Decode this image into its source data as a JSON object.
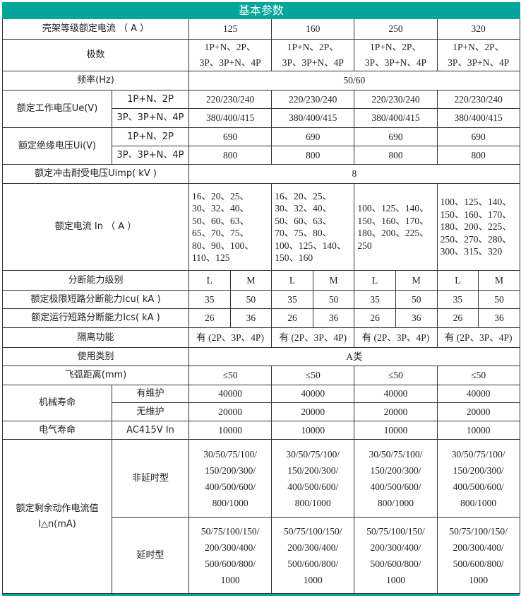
{
  "title": "基本参数",
  "accent_color": "#00a69a",
  "rows": [
    {
      "kind": "full",
      "label": "壳架等级额定电流 （ A ）",
      "values": [
        "125",
        "160",
        "250",
        "320"
      ]
    },
    {
      "kind": "full",
      "label": "极数",
      "values": [
        "1P+N、2P、\n3P、3P+N、4P",
        "1P+N、2P、\n3P、3P+N、4P",
        "1P+N、2P、\n3P、3P+N、4P",
        "1P+N、2P、\n3P、3P+N、4P"
      ]
    },
    {
      "kind": "all",
      "label": "频率(Hz)",
      "value": "50/60"
    },
    {
      "kind": "group",
      "label": "额定工作电压Ue(V)",
      "subs": [
        {
          "sub": "1P+N、2P",
          "values": [
            "220/230/240",
            "220/230/240",
            "220/230/240",
            "220/230/240"
          ]
        },
        {
          "sub": "3P、3P+N、4P",
          "values": [
            "380/400/415",
            "380/400/415",
            "380/400/415",
            "380/400/415"
          ]
        }
      ]
    },
    {
      "kind": "group",
      "label": "额定绝缘电压Ui(V)",
      "subs": [
        {
          "sub": "1P+N、2P",
          "values": [
            "690",
            "690",
            "690",
            "690"
          ]
        },
        {
          "sub": "3P、3P+N、4P",
          "values": [
            "800",
            "800",
            "800",
            "800"
          ]
        }
      ]
    },
    {
      "kind": "all",
      "label": "额定冲击耐受电压Uimp( kV )",
      "value": "8"
    },
    {
      "kind": "full",
      "label": "额定电流 In （ A ）",
      "align": "left",
      "values": [
        "16、20、25、\n30、32、40、\n50、60、63、\n65、70、75、\n80、90、100、\n110、125",
        "16、20、25、\n30、32、40、\n50、60、63、\n70、75、80、\n100、125、140、\n150、160",
        "100、125、140、\n150、160、170、\n180、200、225、\n250",
        "100、125、140、\n150、160、170、\n180、200、225、\n250、270、280、\n300、315、320"
      ]
    },
    {
      "kind": "halves",
      "label": "分断能力级别",
      "values": [
        "L",
        "M",
        "L",
        "M",
        "L",
        "M",
        "L",
        "M"
      ]
    },
    {
      "kind": "halves",
      "label": "额定极限短路分断能力Icu( kA )",
      "values": [
        "35",
        "50",
        "35",
        "50",
        "35",
        "50",
        "35",
        "50"
      ]
    },
    {
      "kind": "halves",
      "label": "额定运行短路分断能力Ics( kA )",
      "values": [
        "26",
        "36",
        "26",
        "36",
        "26",
        "36",
        "26",
        "36"
      ]
    },
    {
      "kind": "full",
      "label": "隔离功能",
      "values": [
        "有 (2P、3P、4P)",
        "有 (2P、3P、4P)",
        "有 (2P、3P、4P)",
        "有 (2P、3P、4P)"
      ]
    },
    {
      "kind": "all",
      "label": "使用类别",
      "value": "A类"
    },
    {
      "kind": "full",
      "label": "飞弧距离(mm)",
      "values": [
        "≤50",
        "≤50",
        "≤50",
        "≤50"
      ]
    },
    {
      "kind": "group",
      "label": "机械寿命",
      "subs": [
        {
          "sub": "有维护",
          "values": [
            "40000",
            "40000",
            "40000",
            "40000"
          ]
        },
        {
          "sub": "无维护",
          "values": [
            "20000",
            "20000",
            "20000",
            "20000"
          ]
        }
      ]
    },
    {
      "kind": "group",
      "label": "电气寿命",
      "subs": [
        {
          "sub": "AC415V In",
          "values": [
            "10000",
            "10000",
            "10000",
            "10000"
          ]
        }
      ]
    },
    {
      "kind": "group",
      "label": "额定剩余动作电流值\nI△n(mA)",
      "subs": [
        {
          "sub": "非延时型",
          "values": [
            "30/50/75/100/\n150/200/300/\n400/500/600/\n800/1000",
            "30/50/75/100/\n150/200/300/\n400/500/600/\n800/1000",
            "30/50/75/100/\n150/200/300/\n400/500/600/\n800/1000",
            "30/50/75/100/\n150/200/300/\n400/500/600/\n800/1000"
          ]
        },
        {
          "sub": "延时型",
          "values": [
            "50/75/100/150/\n200/300/400/\n500/600/800/\n1000",
            "50/75/100/150/\n200/300/400/\n500/600/800/\n1000",
            "50/75/100/150/\n200/300/400/\n500/600/800/\n1000",
            "50/75/100/150/\n200/300/400/\n500/600/800/\n1000"
          ]
        }
      ]
    }
  ]
}
